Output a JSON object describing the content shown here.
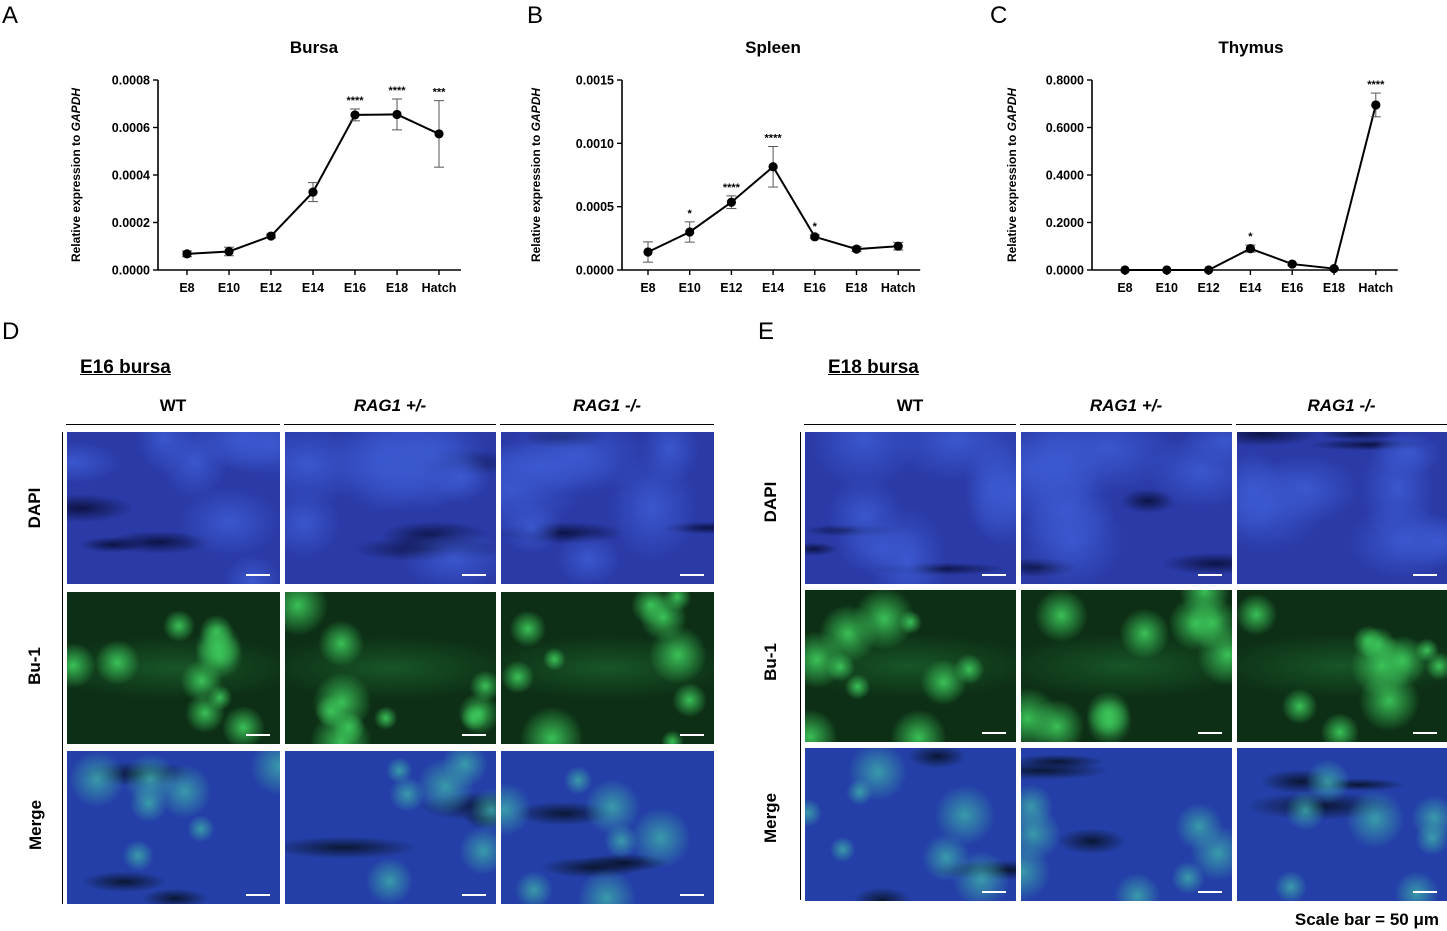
{
  "panels": {
    "A": "A",
    "B": "B",
    "C": "C",
    "D": "D",
    "E": "E"
  },
  "y_axis_label_prefix": "Relative expression to ",
  "y_axis_label_gene": "GAPDH",
  "chart_data": [
    {
      "type": "line",
      "title": "Bursa",
      "categories": [
        "E8",
        "E10",
        "E12",
        "E14",
        "E16",
        "E18",
        "Hatch"
      ],
      "values": [
        6.8e-05,
        7.8e-05,
        0.000143,
        0.000328,
        0.000653,
        0.000655,
        0.000573
      ],
      "errors": [
        1.2e-05,
        1.8e-05,
        8e-06,
        4e-05,
        2.5e-05,
        6.5e-05,
        0.00014
      ],
      "significance": [
        "",
        "",
        "",
        "",
        "****",
        "****",
        "***"
      ],
      "ylim": [
        0,
        0.0008
      ],
      "yticks": [
        0.0,
        0.0002,
        0.0004,
        0.0006,
        0.0008
      ],
      "ytick_labels": [
        "0.0000",
        "0.0002",
        "0.0004",
        "0.0006",
        "0.0008"
      ],
      "xlabel": "",
      "ylabel": "Relative expression to GAPDH",
      "grid": false
    },
    {
      "type": "line",
      "title": "Spleen",
      "categories": [
        "E8",
        "E10",
        "E12",
        "E14",
        "E16",
        "E18",
        "Hatch"
      ],
      "values": [
        0.000142,
        0.0003,
        0.000535,
        0.000815,
        0.000262,
        0.000165,
        0.000188
      ],
      "errors": [
        8e-05,
        8e-05,
        5e-05,
        0.00016,
        1.5e-05,
        2e-05,
        3e-05
      ],
      "significance": [
        "",
        "*",
        "****",
        "****",
        "*",
        "",
        ""
      ],
      "ylim": [
        0,
        0.0015
      ],
      "yticks": [
        0.0,
        0.0005,
        0.001,
        0.0015
      ],
      "ytick_labels": [
        "0.0000",
        "0.0005",
        "0.0010",
        "0.0015"
      ],
      "xlabel": "",
      "ylabel": "Relative expression to GAPDH",
      "grid": false
    },
    {
      "type": "line",
      "title": "Thymus",
      "categories": [
        "E8",
        "E10",
        "E12",
        "E14",
        "E16",
        "E18",
        "Hatch"
      ],
      "values": [
        0.0,
        0.0,
        0.0,
        0.09,
        0.025,
        0.006,
        0.695
      ],
      "errors": [
        0.0,
        0.0,
        0.0,
        0.015,
        0.005,
        0.002,
        0.05
      ],
      "significance": [
        "",
        "",
        "",
        "*",
        "",
        "",
        "****"
      ],
      "ylim": [
        0,
        0.8
      ],
      "yticks": [
        0.0,
        0.2,
        0.4,
        0.6,
        0.8
      ],
      "ytick_labels": [
        "0.0000",
        "0.2000",
        "0.4000",
        "0.6000",
        "0.8000"
      ],
      "xlabel": "",
      "ylabel": "Relative expression to GAPDH",
      "grid": false
    }
  ],
  "micrographs": {
    "D": {
      "title": "E16 bursa",
      "columns": [
        "WT",
        "RAG1 +/-",
        "RAG1 -/-"
      ],
      "rows": [
        "DAPI",
        "Bu-1",
        "Merge"
      ]
    },
    "E": {
      "title": "E18 bursa",
      "columns": [
        "WT",
        "RAG1 +/-",
        "RAG1 -/-"
      ],
      "rows": [
        "DAPI",
        "Bu-1",
        "Merge"
      ]
    }
  },
  "scale_bar_text": "Scale bar = 50 μm",
  "colors": {
    "dapi": "#2a3fb0",
    "bu1": "#1f9a3a",
    "merge": "#2b4cb8",
    "background_dark": "#06121e",
    "line": "#000000"
  }
}
